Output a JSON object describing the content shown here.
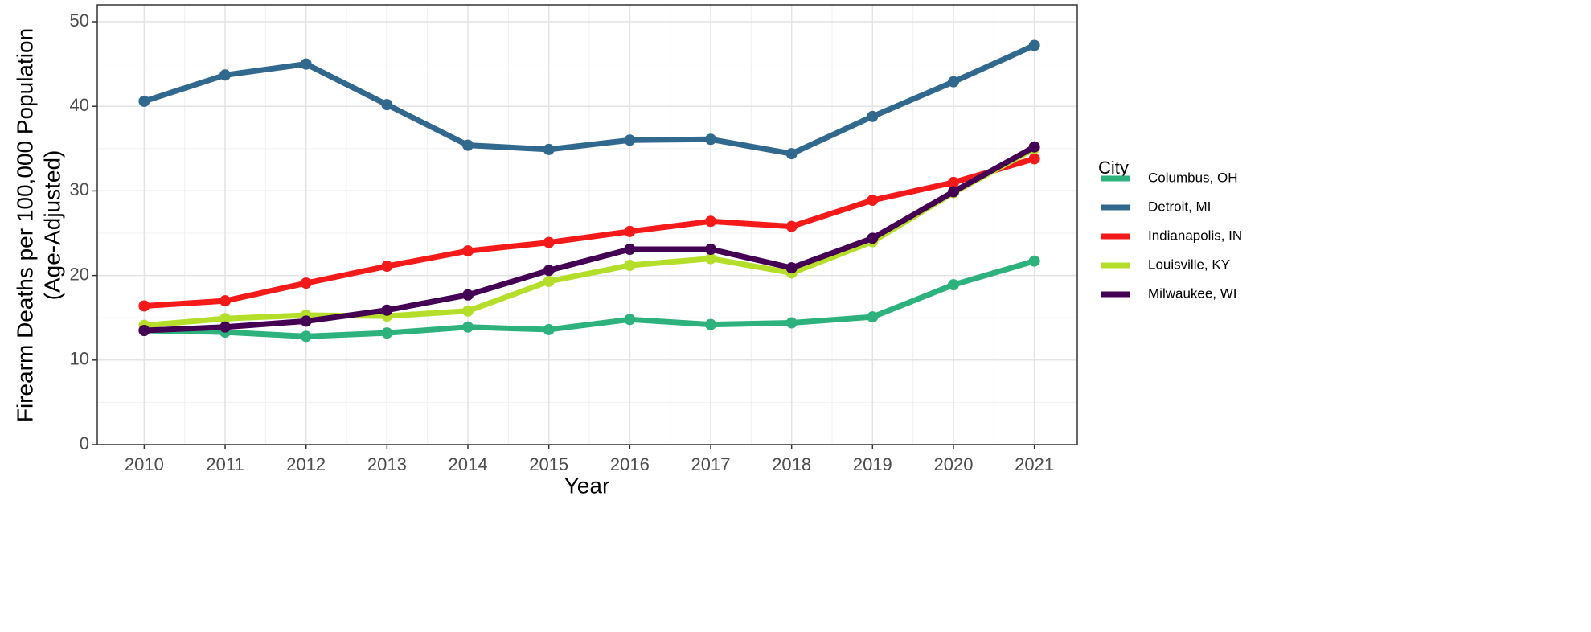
{
  "chart_data": {
    "type": "line",
    "x_label": "Year",
    "y_label": [
      "Firearm Deaths per 100,000 Population",
      "(Age-Adjusted)"
    ],
    "legend_title": "City",
    "legend_position": "right",
    "grid": true,
    "x": [
      2010,
      2011,
      2012,
      2013,
      2014,
      2015,
      2016,
      2017,
      2018,
      2019,
      2020,
      2021
    ],
    "xlim": [
      2009.42,
      2021.53
    ],
    "xticks": [
      2010,
      2011,
      2012,
      2013,
      2014,
      2015,
      2016,
      2017,
      2018,
      2019,
      2020,
      2021
    ],
    "ylim": [
      0,
      52
    ],
    "yticks": [
      0,
      10,
      20,
      30,
      40,
      50
    ],
    "series": [
      {
        "name": "Columbus, OH",
        "color": "#2db27d",
        "values": [
          13.5,
          13.3,
          12.8,
          13.2,
          13.9,
          13.6,
          14.8,
          14.2,
          14.4,
          15.1,
          18.9,
          21.7
        ]
      },
      {
        "name": "Detroit, MI",
        "color": "#31688e",
        "values": [
          40.6,
          43.7,
          45.0,
          40.2,
          35.4,
          34.9,
          36.0,
          36.1,
          34.4,
          38.8,
          42.9,
          47.2
        ]
      },
      {
        "name": "Indianapolis, IN",
        "color": "#f51a1a",
        "values": [
          16.4,
          17.0,
          19.1,
          21.1,
          22.9,
          23.9,
          25.2,
          26.4,
          25.8,
          28.9,
          31.0,
          33.8
        ]
      },
      {
        "name": "Louisville, KY",
        "color": "#b5de2b",
        "values": [
          14.1,
          14.9,
          15.3,
          15.2,
          15.8,
          19.3,
          21.2,
          22.0,
          20.3,
          24.0,
          29.8,
          35.0
        ]
      },
      {
        "name": "Milwaukee, WI",
        "color": "#440154",
        "values": [
          13.5,
          13.9,
          14.6,
          15.9,
          17.7,
          20.6,
          23.1,
          23.1,
          20.9,
          24.4,
          29.9,
          35.2
        ]
      }
    ]
  }
}
